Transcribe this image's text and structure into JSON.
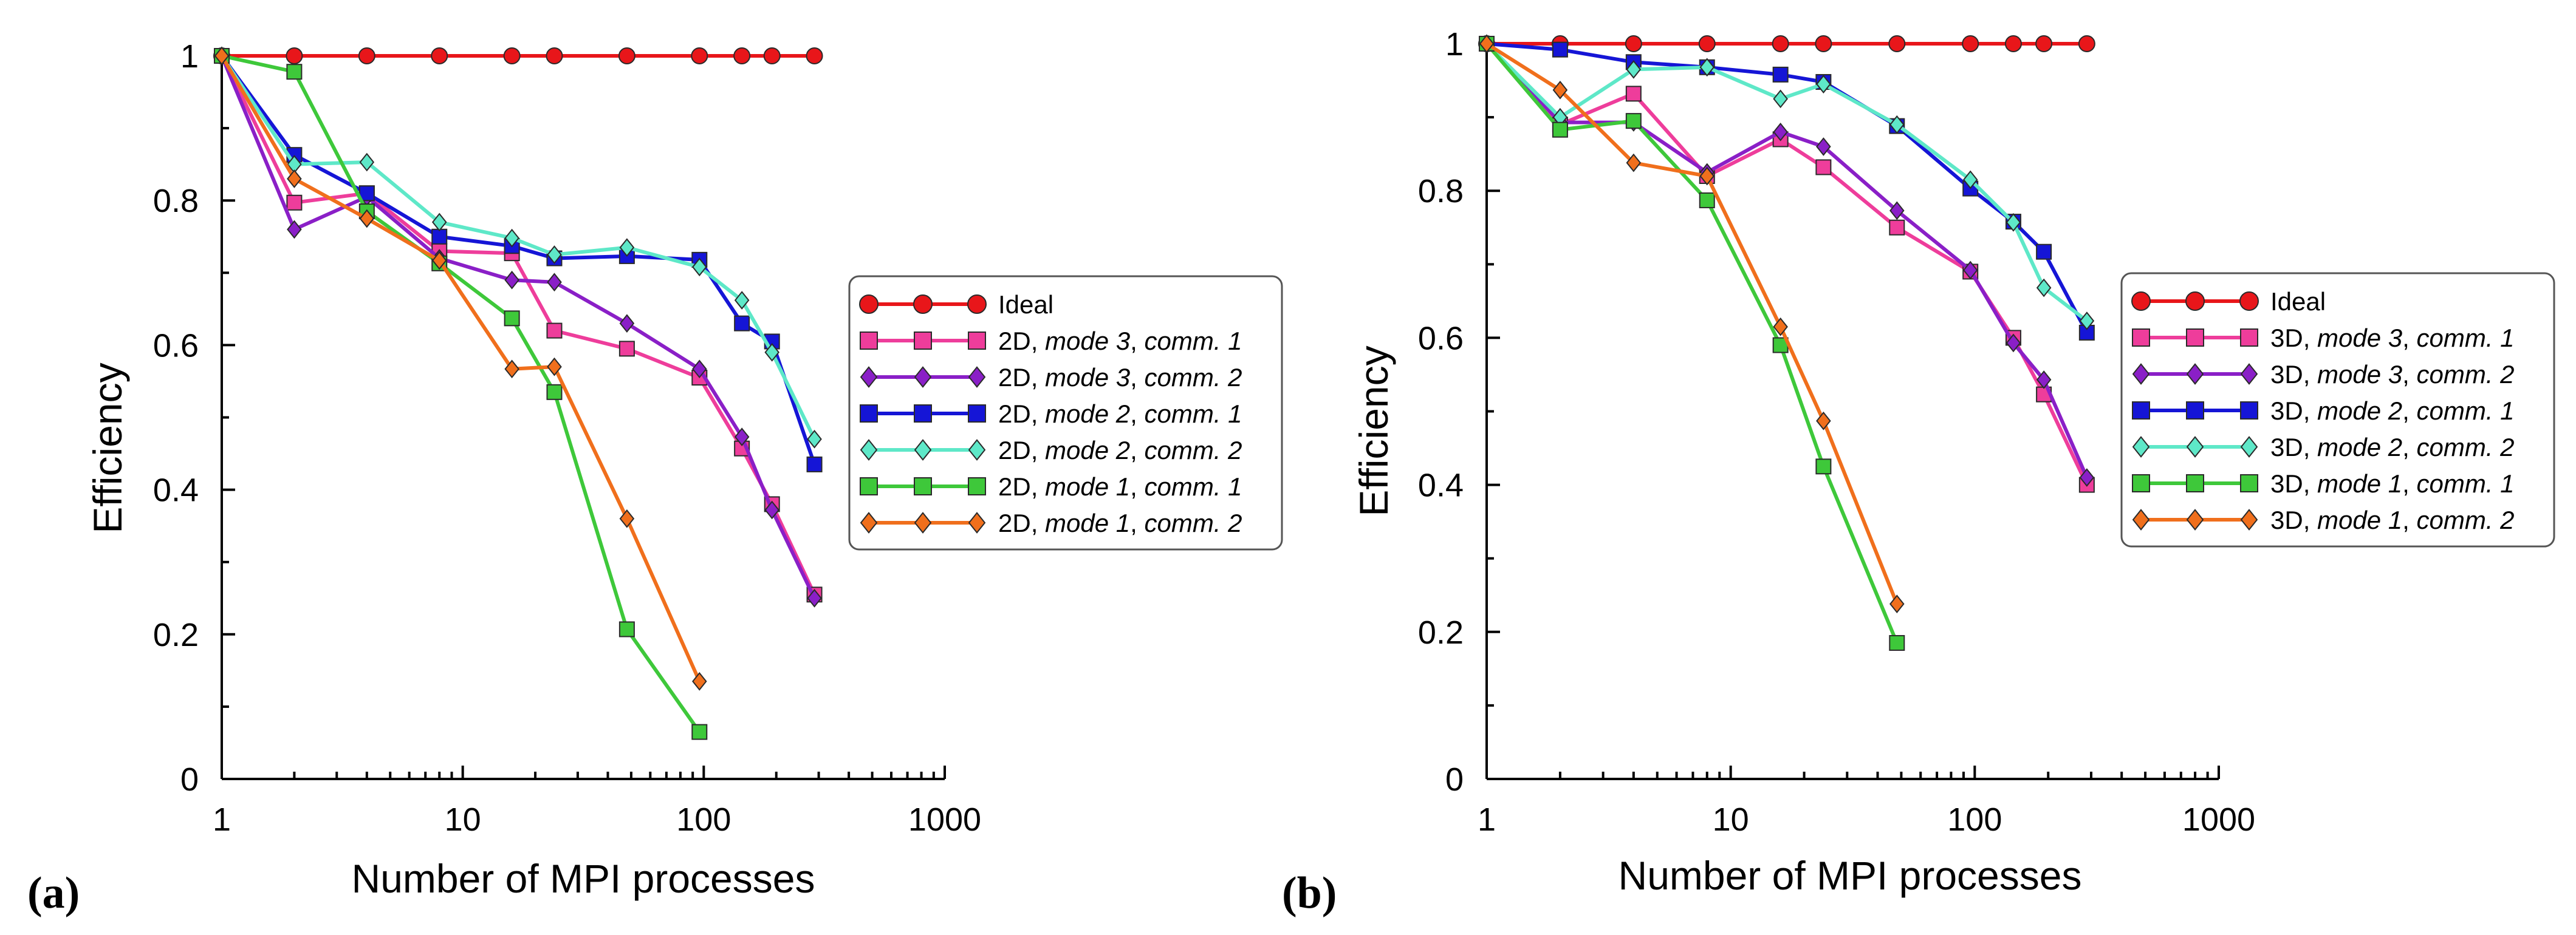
{
  "chart_data": [
    {
      "panel_label": "(a)",
      "type": "line",
      "xscale": "log",
      "xlabel": "Number of MPI processes",
      "ylabel": "Efficiency",
      "xlim": [
        1,
        1000
      ],
      "ylim": [
        0,
        1
      ],
      "x_ticks": [
        "1",
        "10",
        "100",
        "1000"
      ],
      "y_ticks": [
        "0",
        "0.2",
        "0.4",
        "0.6",
        "0.8",
        "1"
      ],
      "legend_position": "right",
      "series": [
        {
          "name": "Ideal",
          "label_main": "Ideal",
          "label_mode": "",
          "label_sep": "",
          "label_comm": "",
          "color": "#e8161a",
          "marker": "circle",
          "x": [
            1,
            2,
            4,
            8,
            16,
            24,
            48,
            96,
            144,
            192,
            288
          ],
          "y": [
            1,
            1,
            1,
            1,
            1,
            1,
            1,
            1,
            1,
            1,
            1
          ]
        },
        {
          "name": "2D, mode 3, comm. 1",
          "label_main": "2D, ",
          "label_mode": "mode 3",
          "label_sep": ", ",
          "label_comm": "comm. 1",
          "color": "#ee3d9b",
          "marker": "square",
          "x": [
            1,
            2,
            4,
            8,
            16,
            24,
            48,
            96,
            144,
            192,
            288
          ],
          "y": [
            1,
            0.797,
            0.81,
            0.73,
            0.727,
            0.62,
            0.595,
            0.555,
            0.457,
            0.38,
            0.255
          ]
        },
        {
          "name": "2D, mode 3, comm. 2",
          "label_main": "2D, ",
          "label_mode": "mode 3",
          "label_sep": ", ",
          "label_comm": "comm. 2",
          "color": "#8a1fc7",
          "marker": "diamond",
          "x": [
            1,
            2,
            4,
            8,
            16,
            24,
            48,
            96,
            144,
            192,
            288
          ],
          "y": [
            1,
            0.76,
            0.805,
            0.72,
            0.69,
            0.687,
            0.63,
            0.567,
            0.473,
            0.372,
            0.25
          ]
        },
        {
          "name": "2D, mode 2, comm. 1",
          "label_main": "2D, ",
          "label_mode": "mode 2",
          "label_sep": ", ",
          "label_comm": "comm. 1",
          "color": "#1515d6",
          "marker": "square",
          "x": [
            1,
            2,
            4,
            8,
            16,
            24,
            48,
            96,
            144,
            192,
            288
          ],
          "y": [
            1,
            0.863,
            0.81,
            0.75,
            0.737,
            0.72,
            0.723,
            0.718,
            0.63,
            0.605,
            0.435
          ]
        },
        {
          "name": "2D, mode 2, comm. 2",
          "label_main": "2D, ",
          "label_mode": "mode 2",
          "label_sep": ", ",
          "label_comm": "comm. 2",
          "color": "#5ee8c8",
          "marker": "diamond",
          "x": [
            1,
            2,
            4,
            8,
            16,
            24,
            48,
            96,
            144,
            192,
            288
          ],
          "y": [
            1,
            0.85,
            0.853,
            0.77,
            0.748,
            0.725,
            0.735,
            0.708,
            0.662,
            0.59,
            0.47
          ]
        },
        {
          "name": "2D, mode 1, comm. 1",
          "label_main": "2D, ",
          "label_mode": "mode 1",
          "label_sep": ", ",
          "label_comm": "comm. 1",
          "color": "#3ec83a",
          "marker": "square",
          "x": [
            1,
            2,
            4,
            8,
            16,
            24,
            48,
            96
          ],
          "y": [
            1,
            0.978,
            0.785,
            0.713,
            0.637,
            0.535,
            0.207,
            0.065
          ]
        },
        {
          "name": "2D, mode 1, comm. 2",
          "label_main": "2D, ",
          "label_mode": "mode 1",
          "label_sep": ", ",
          "label_comm": "comm. 2",
          "color": "#f06f1c",
          "marker": "diamond",
          "x": [
            1,
            2,
            4,
            8,
            16,
            24,
            48,
            96
          ],
          "y": [
            1,
            0.83,
            0.775,
            0.717,
            0.567,
            0.57,
            0.36,
            0.135
          ]
        }
      ]
    },
    {
      "panel_label": "(b)",
      "type": "line",
      "xscale": "log",
      "xlabel": "Number of MPI processes",
      "ylabel": "Efficiency",
      "xlim": [
        1,
        1000
      ],
      "ylim": [
        0,
        1
      ],
      "x_ticks": [
        "1",
        "10",
        "100",
        "1000"
      ],
      "y_ticks": [
        "0",
        "0.2",
        "0.4",
        "0.6",
        "0.8",
        "1"
      ],
      "legend_position": "right",
      "series": [
        {
          "name": "Ideal",
          "label_main": "Ideal",
          "label_mode": "",
          "label_sep": "",
          "label_comm": "",
          "color": "#e8161a",
          "marker": "circle",
          "x": [
            1,
            2,
            4,
            8,
            16,
            24,
            48,
            96,
            144,
            192,
            288
          ],
          "y": [
            1,
            1,
            1,
            1,
            1,
            1,
            1,
            1,
            1,
            1,
            1
          ]
        },
        {
          "name": "3D, mode 3, comm. 1",
          "label_main": "3D, ",
          "label_mode": "mode 3",
          "label_sep": ", ",
          "label_comm": "comm. 1",
          "color": "#ee3d9b",
          "marker": "square",
          "x": [
            1,
            2,
            4,
            8,
            16,
            24,
            48,
            96,
            144,
            192,
            288
          ],
          "y": [
            1,
            0.89,
            0.932,
            0.82,
            0.87,
            0.832,
            0.75,
            0.69,
            0.6,
            0.523,
            0.4
          ]
        },
        {
          "name": "3D, mode 3, comm. 2",
          "label_main": "3D, ",
          "label_mode": "mode 3",
          "label_sep": ", ",
          "label_comm": "comm. 2",
          "color": "#8a1fc7",
          "marker": "diamond",
          "x": [
            1,
            2,
            4,
            8,
            16,
            24,
            48,
            96,
            144,
            192,
            288
          ],
          "y": [
            1,
            0.893,
            0.893,
            0.825,
            0.88,
            0.86,
            0.773,
            0.692,
            0.593,
            0.543,
            0.41
          ]
        },
        {
          "name": "3D, mode 2, comm. 1",
          "label_main": "3D, ",
          "label_mode": "mode 2",
          "label_sep": ", ",
          "label_comm": "comm. 1",
          "color": "#1515d6",
          "marker": "square",
          "x": [
            1,
            2,
            4,
            8,
            16,
            24,
            48,
            96,
            144,
            192,
            288
          ],
          "y": [
            1,
            0.992,
            0.975,
            0.968,
            0.958,
            0.948,
            0.888,
            0.803,
            0.758,
            0.717,
            0.607
          ]
        },
        {
          "name": "3D, mode 2, comm. 2",
          "label_main": "3D, ",
          "label_mode": "mode 2",
          "label_sep": ", ",
          "label_comm": "comm. 2",
          "color": "#5ee8c8",
          "marker": "diamond",
          "x": [
            1,
            2,
            4,
            8,
            16,
            24,
            48,
            96,
            144,
            192,
            288
          ],
          "y": [
            1,
            0.9,
            0.965,
            0.968,
            0.925,
            0.945,
            0.89,
            0.815,
            0.757,
            0.668,
            0.623
          ]
        },
        {
          "name": "3D, mode 1, comm. 1",
          "label_main": "3D, ",
          "label_mode": "mode 1",
          "label_sep": ", ",
          "label_comm": "comm. 1",
          "color": "#3ec83a",
          "marker": "square",
          "x": [
            1,
            2,
            4,
            8,
            16,
            24,
            48
          ],
          "y": [
            1,
            0.883,
            0.895,
            0.787,
            0.59,
            0.425,
            0.185
          ]
        },
        {
          "name": "3D, mode 1, comm. 2",
          "label_main": "3D, ",
          "label_mode": "mode 1",
          "label_sep": ", ",
          "label_comm": "comm. 2",
          "color": "#f06f1c",
          "marker": "diamond",
          "x": [
            1,
            2,
            4,
            8,
            16,
            24,
            48
          ],
          "y": [
            1,
            0.937,
            0.838,
            0.82,
            0.615,
            0.487,
            0.238
          ]
        }
      ]
    }
  ]
}
